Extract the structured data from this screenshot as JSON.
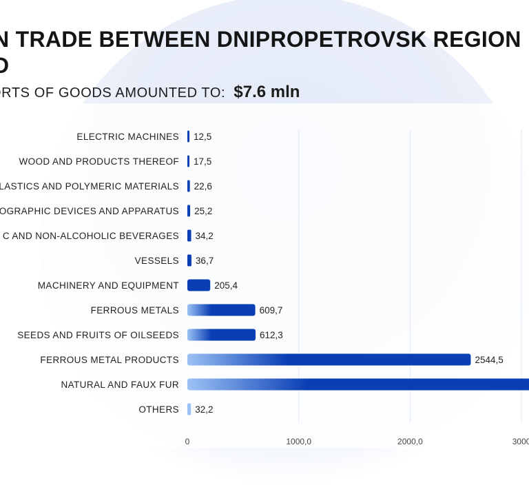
{
  "header": {
    "title": "N TRADE BETWEEN DNIPROPETROVSK REGION\nD",
    "subtitle_label": "ORTS OF GOODS AMOUNTED TO:",
    "subtitle_value": "$7.6 mln"
  },
  "chart_data": {
    "type": "bar",
    "orientation": "horizontal",
    "categories": [
      "ELECTRIC MACHINES",
      "WOOD AND PRODUCTS THEREOF",
      "LASTICS AND POLYMERIC MATERIALS",
      "OGRAPHIC DEVICES AND APPARATUS",
      "C AND NON-ALCOHOLIC BEVERAGES",
      "VESSELS",
      "MACHINERY AND EQUIPMENT",
      "FERROUS METALS",
      "SEEDS AND FRUITS OF OILSEEDS",
      "FERROUS METAL PRODUCTS",
      "NATURAL AND FAUX FUR",
      "OTHERS"
    ],
    "values": [
      12.5,
      17.5,
      22.6,
      25.2,
      34.2,
      36.7,
      205.4,
      609.7,
      612.3,
      2544.5,
      3100,
      32.2
    ],
    "value_labels": [
      "12,5",
      "17,5",
      "22,6",
      "25,2",
      "34,2",
      "36,7",
      "205,4",
      "609,7",
      "612,3",
      "2544,5",
      "",
      "32,2"
    ],
    "x_ticks": [
      0,
      1000,
      2000,
      3000
    ],
    "x_tick_labels": [
      "0",
      "1000,0",
      "2000,0",
      "3000"
    ],
    "xlim": [
      0,
      3100
    ],
    "grid": true,
    "colors": {
      "bar_dark": "#0a3eb4",
      "bar_light": "#9cc2f5",
      "grid": "#e3e8f0",
      "text": "#222222",
      "tick": "#444444"
    }
  }
}
